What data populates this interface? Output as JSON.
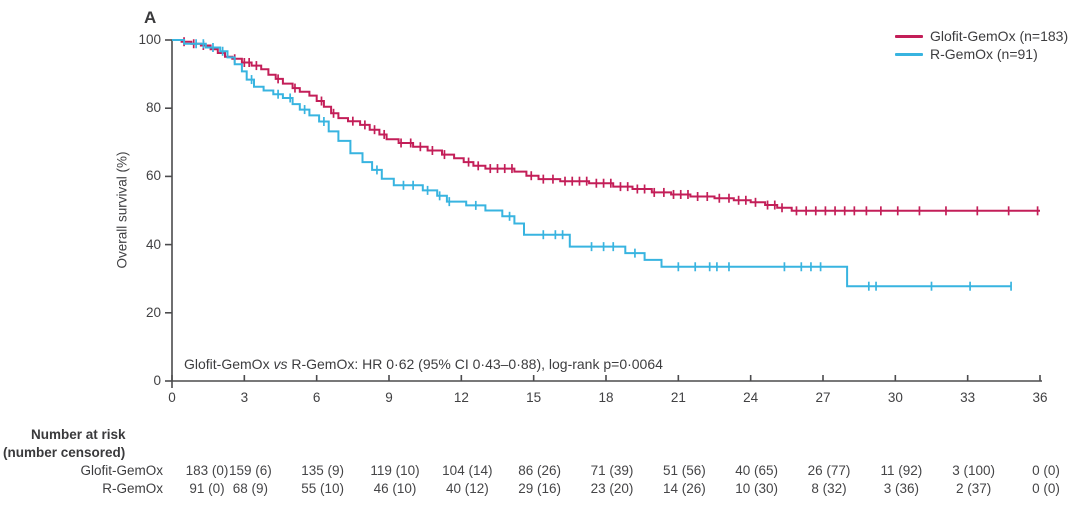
{
  "panel_label": "A",
  "colors": {
    "glofit": "#C31E58",
    "rgemox": "#38B4E0",
    "axis": "#4b4b4d",
    "text": "#3d3d3f"
  },
  "legend": {
    "items": [
      {
        "label": "Glofit-GemOx (n=183)",
        "series": "glofit"
      },
      {
        "label": "R-GemOx (n=91)",
        "series": "rgemox"
      }
    ]
  },
  "annotation": {
    "pre": "Glofit-GemOx ",
    "vs": "vs",
    "post": " R-GemOx: HR 0·62 (95% CI 0·43–0·88), log-rank p=0·0064"
  },
  "chart_data": {
    "type": "line",
    "subtype": "kaplan-meier-step",
    "title": "",
    "xlabel": "",
    "ylabel": "Overall survival (%)",
    "xlim": [
      0,
      36
    ],
    "ylim": [
      0,
      100
    ],
    "xticks": [
      0,
      3,
      6,
      9,
      12,
      15,
      18,
      21,
      24,
      27,
      30,
      33,
      36
    ],
    "yticks": [
      0,
      20,
      40,
      60,
      80,
      100
    ],
    "grid": false,
    "legend_position": "top-right",
    "annotation_text": "Glofit-GemOx vs R-GemOx: HR 0·62 (95% CI 0·43–0·88), log-rank p=0·0064",
    "series": [
      {
        "name": "Glofit-GemOx (n=183)",
        "color": "#C31E58",
        "end_time": 36,
        "steps": [
          [
            0,
            100
          ],
          [
            0.4,
            99.5
          ],
          [
            0.8,
            98.9
          ],
          [
            1.2,
            98.4
          ],
          [
            1.6,
            97.3
          ],
          [
            1.9,
            96.2
          ],
          [
            2.2,
            95.1
          ],
          [
            2.5,
            94.5
          ],
          [
            2.9,
            93.4
          ],
          [
            3.3,
            92.5
          ],
          [
            3.7,
            91.4
          ],
          [
            4.0,
            89.8
          ],
          [
            4.3,
            88.6
          ],
          [
            4.6,
            87.2
          ],
          [
            5.0,
            85.9
          ],
          [
            5.3,
            84.8
          ],
          [
            5.7,
            83.7
          ],
          [
            6.0,
            82.1
          ],
          [
            6.3,
            80.4
          ],
          [
            6.6,
            78.5
          ],
          [
            6.9,
            77.1
          ],
          [
            7.3,
            76.2
          ],
          [
            7.8,
            75.1
          ],
          [
            8.2,
            73.7
          ],
          [
            8.6,
            72.3
          ],
          [
            8.9,
            70.9
          ],
          [
            9.4,
            69.8
          ],
          [
            10.0,
            68.7
          ],
          [
            10.6,
            67.6
          ],
          [
            11.2,
            66.4
          ],
          [
            11.7,
            65.3
          ],
          [
            12.1,
            64.2
          ],
          [
            12.5,
            63.1
          ],
          [
            13.0,
            62.3
          ],
          [
            14.2,
            61.4
          ],
          [
            14.7,
            60.2
          ],
          [
            15.2,
            59.2
          ],
          [
            16.1,
            58.6
          ],
          [
            17.3,
            58.0
          ],
          [
            18.3,
            57.0
          ],
          [
            19.1,
            56.3
          ],
          [
            19.9,
            55.3
          ],
          [
            20.7,
            54.7
          ],
          [
            21.5,
            54.1
          ],
          [
            22.5,
            53.6
          ],
          [
            23.3,
            53.0
          ],
          [
            24.0,
            52.4
          ],
          [
            24.6,
            51.6
          ],
          [
            25.1,
            50.8
          ],
          [
            25.7,
            49.9
          ]
        ],
        "censor_times": [
          0.5,
          0.9,
          1.3,
          2.6,
          3.0,
          3.2,
          3.5,
          4.4,
          5.1,
          6.2,
          6.7,
          7.5,
          8.0,
          8.4,
          8.8,
          9.5,
          9.9,
          10.3,
          10.8,
          11.3,
          12.3,
          12.7,
          13.2,
          13.5,
          13.8,
          14.1,
          14.9,
          15.4,
          15.8,
          16.3,
          16.6,
          16.9,
          17.2,
          17.6,
          17.9,
          18.2,
          18.6,
          18.9,
          19.3,
          19.6,
          20.0,
          20.4,
          20.8,
          21.1,
          21.4,
          21.8,
          22.2,
          22.7,
          23.1,
          23.5,
          23.8,
          24.2,
          24.7,
          25.0,
          25.3,
          25.9,
          26.3,
          26.7,
          27.1,
          27.5,
          27.9,
          28.3,
          28.8,
          29.4,
          30.1,
          31.0,
          32.1,
          33.4,
          34.7,
          35.9
        ]
      },
      {
        "name": "R-GemOx (n=91)",
        "color": "#38B4E0",
        "end_time": 34.8,
        "steps": [
          [
            0,
            100
          ],
          [
            0.5,
            98.9
          ],
          [
            1.4,
            97.8
          ],
          [
            2.0,
            96.7
          ],
          [
            2.3,
            94.9
          ],
          [
            2.6,
            92.9
          ],
          [
            2.9,
            90.8
          ],
          [
            3.1,
            88.4
          ],
          [
            3.4,
            86.3
          ],
          [
            3.8,
            85.2
          ],
          [
            4.2,
            84.1
          ],
          [
            4.6,
            83.0
          ],
          [
            5.0,
            81.2
          ],
          [
            5.3,
            79.6
          ],
          [
            5.7,
            77.9
          ],
          [
            6.1,
            76.1
          ],
          [
            6.5,
            73.2
          ],
          [
            6.9,
            70.4
          ],
          [
            7.4,
            66.8
          ],
          [
            7.9,
            64.2
          ],
          [
            8.3,
            61.9
          ],
          [
            8.7,
            59.3
          ],
          [
            9.2,
            57.4
          ],
          [
            10.4,
            55.9
          ],
          [
            11.0,
            54.3
          ],
          [
            11.4,
            52.6
          ],
          [
            12.2,
            51.5
          ],
          [
            13.0,
            50.0
          ],
          [
            13.7,
            48.3
          ],
          [
            14.2,
            46.2
          ],
          [
            14.6,
            42.9
          ],
          [
            16.5,
            39.4
          ],
          [
            18.8,
            37.5
          ],
          [
            19.6,
            35.5
          ],
          [
            20.3,
            33.5
          ],
          [
            28.0,
            27.8
          ]
        ],
        "censor_times": [
          1.0,
          1.3,
          1.7,
          2.1,
          3.3,
          4.4,
          4.9,
          5.5,
          6.3,
          8.5,
          9.6,
          10.0,
          10.6,
          11.1,
          11.5,
          12.6,
          14.0,
          15.4,
          15.9,
          16.2,
          17.4,
          17.9,
          18.3,
          19.2,
          21.0,
          21.7,
          22.3,
          22.6,
          23.1,
          25.4,
          26.1,
          26.5,
          26.9,
          28.9,
          29.2,
          31.5,
          33.1,
          34.8
        ]
      }
    ],
    "risk_table": {
      "header_line1": "Number at risk",
      "header_line2": "(number censored)",
      "months": [
        0,
        3,
        6,
        9,
        12,
        15,
        18,
        21,
        24,
        27,
        30,
        33,
        36
      ],
      "rows": [
        {
          "label": "Glofit-GemOx",
          "values": [
            "183 (0)",
            "159 (6)",
            "135 (9)",
            "119 (10)",
            "104 (14)",
            "86 (26)",
            "71 (39)",
            "51 (56)",
            "40 (65)",
            "26 (77)",
            "11 (92)",
            "3 (100)",
            "0 (0)"
          ]
        },
        {
          "label": "R-GemOx",
          "values": [
            "91 (0)",
            "68 (9)",
            "55 (10)",
            "46 (10)",
            "40 (12)",
            "29 (16)",
            "23 (20)",
            "14 (26)",
            "10 (30)",
            "8 (32)",
            "3 (36)",
            "2 (37)",
            "0 (0)"
          ]
        }
      ]
    }
  }
}
